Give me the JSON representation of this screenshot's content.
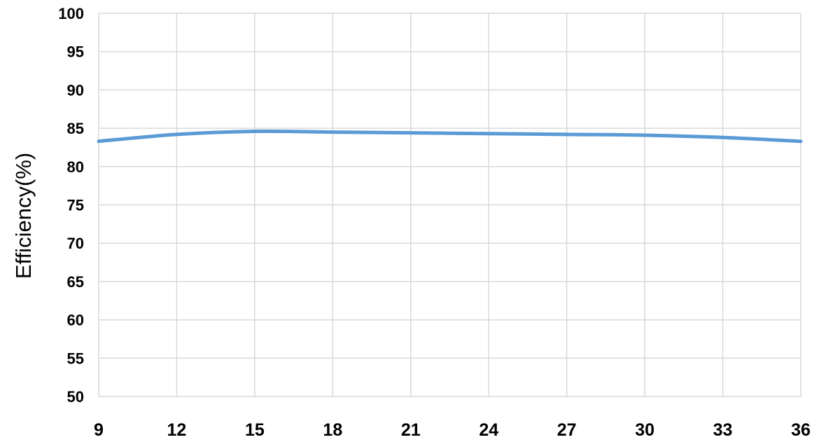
{
  "chart_data": {
    "type": "line",
    "title": "",
    "xlabel": "",
    "ylabel": "Efficiency(%)",
    "xlim": [
      9,
      36
    ],
    "ylim": [
      50,
      100
    ],
    "xticks": [
      9,
      12,
      15,
      18,
      21,
      24,
      27,
      30,
      33,
      36
    ],
    "yticks": [
      50,
      55,
      60,
      65,
      70,
      75,
      80,
      85,
      90,
      95,
      100
    ],
    "grid": true,
    "legend": "none",
    "series": [
      {
        "color": "#5b9bd5",
        "x": [
          9,
          12,
          15,
          18,
          21,
          24,
          27,
          30,
          33,
          36
        ],
        "y": [
          83.3,
          84.2,
          84.6,
          84.5,
          84.4,
          84.3,
          84.2,
          84.1,
          83.8,
          83.3
        ]
      }
    ]
  }
}
